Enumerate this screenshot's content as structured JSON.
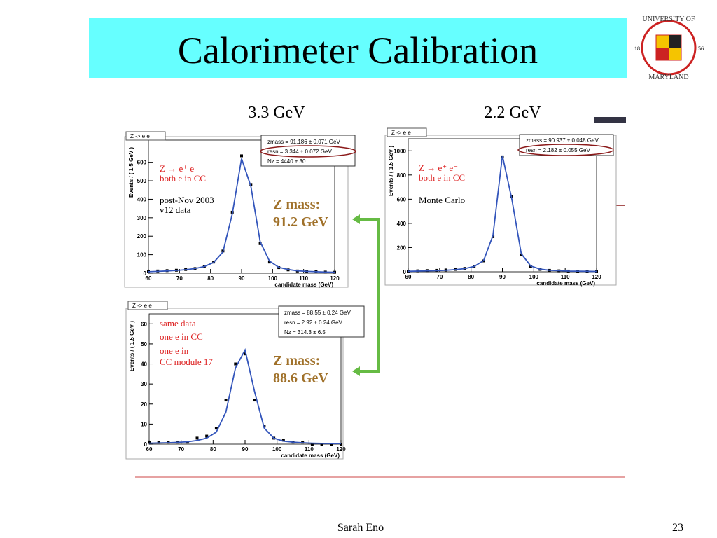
{
  "slide": {
    "title": "Calorimeter Calibration",
    "left_label": "3.3 GeV",
    "right_label": "2.2 GeV",
    "zmass_top": [
      "Z mass:",
      "91.2 GeV"
    ],
    "zmass_bottom": [
      "Z mass:",
      "88.6 GeV"
    ],
    "footer": "Sarah Eno",
    "page": "23",
    "logo": {
      "top": "UNIVERSITY OF",
      "bottom": "MARYLAND",
      "left": "18",
      "right": "56"
    }
  },
  "chart_data": [
    {
      "type": "line",
      "label": "Z -> e e",
      "stats": [
        "zmass =  91.186 ± 0.071 GeV",
        "resn =  3.344 ± 0.072 GeV",
        "Nz =  4440 ± 30"
      ],
      "annotations": [
        "Z → e⁺ e⁻",
        "both e in CC",
        "post-Nov 2003",
        "v12 data"
      ],
      "ylabel": "Events / ( 1.5 GeV )",
      "xlabel": "candidate mass (GeV)",
      "x": [
        60,
        63,
        66,
        69,
        72,
        75,
        78,
        81,
        84,
        87,
        90,
        93,
        96,
        99,
        102,
        105,
        108,
        111,
        114,
        117,
        120
      ],
      "series": [
        {
          "style": "points",
          "color": "#000000",
          "values": [
            10,
            12,
            14,
            16,
            20,
            25,
            35,
            60,
            120,
            330,
            635,
            480,
            160,
            60,
            30,
            18,
            12,
            10,
            8,
            6,
            5
          ]
        },
        {
          "style": "line",
          "color": "#3355bb",
          "values": [
            8,
            10,
            12,
            15,
            19,
            25,
            36,
            58,
            115,
            320,
            620,
            470,
            170,
            65,
            32,
            20,
            13,
            10,
            8,
            6,
            5
          ]
        }
      ],
      "xlim": [
        60,
        120
      ],
      "ylim": [
        0,
        720
      ],
      "xticks": [
        60,
        70,
        80,
        90,
        100,
        110,
        120
      ],
      "yticks": [
        0,
        100,
        200,
        300,
        400,
        500,
        600
      ]
    },
    {
      "type": "line",
      "label": "Z -> e e",
      "stats": [
        "zmass =  90.937 ± 0.048 GeV",
        "resn =  2.182 ± 0.055 GeV"
      ],
      "annotations": [
        "Z → e⁺ e⁻",
        "both e in CC",
        "Monte Carlo"
      ],
      "ylabel": "Events / ( 1.5 GeV )",
      "xlabel": "candidate mass (GeV)",
      "x": [
        60,
        63,
        66,
        69,
        72,
        75,
        78,
        81,
        84,
        87,
        90,
        93,
        96,
        99,
        102,
        105,
        108,
        111,
        114,
        117,
        120
      ],
      "series": [
        {
          "style": "points",
          "color": "#000000",
          "values": [
            5,
            8,
            10,
            12,
            15,
            20,
            28,
            45,
            90,
            290,
            950,
            620,
            140,
            45,
            20,
            12,
            8,
            6,
            5,
            4,
            3
          ]
        },
        {
          "style": "line",
          "color": "#3355bb",
          "values": [
            4,
            6,
            8,
            10,
            13,
            18,
            26,
            44,
            92,
            300,
            960,
            600,
            150,
            48,
            22,
            13,
            9,
            6,
            5,
            4,
            3
          ]
        }
      ],
      "xlim": [
        60,
        120
      ],
      "ylim": [
        0,
        1100
      ],
      "xticks": [
        60,
        70,
        80,
        90,
        100,
        110,
        120
      ],
      "yticks": [
        0,
        200,
        400,
        600,
        800,
        1000
      ]
    },
    {
      "type": "line",
      "label": "Z -> e e",
      "stats": [
        "zmass =  88.55 ± 0.24 GeV",
        "resn =  2.92 ± 0.24 GeV",
        "Nz =  314.3 ± 6.5"
      ],
      "annotations": [
        "same data",
        "one e in CC",
        "one e in",
        "CC module 17"
      ],
      "ylabel": "Events / ( 1.5 GeV )",
      "xlabel": "candidate mass (GeV)",
      "x": [
        60,
        63,
        66,
        69,
        72,
        75,
        78,
        81,
        84,
        87,
        90,
        93,
        96,
        99,
        102,
        105,
        108,
        111,
        114,
        117,
        120
      ],
      "series": [
        {
          "style": "points",
          "color": "#000000",
          "values": [
            1,
            1,
            1,
            1,
            1,
            3,
            4,
            8,
            22,
            40,
            45,
            22,
            9,
            3,
            2,
            1,
            1,
            0,
            0,
            0,
            0
          ]
        },
        {
          "style": "line",
          "color": "#3355bb",
          "values": [
            0.5,
            0.6,
            0.7,
            0.9,
            1.2,
            1.8,
            3,
            6,
            16,
            38,
            47,
            26,
            8,
            3,
            1.5,
            1,
            0.7,
            0.5,
            0.4,
            0.3,
            0.3
          ]
        }
      ],
      "xlim": [
        60,
        120
      ],
      "ylim": [
        0,
        65
      ],
      "xticks": [
        60,
        70,
        80,
        90,
        100,
        110,
        120
      ],
      "yticks": [
        0,
        10,
        20,
        30,
        40,
        50,
        60
      ]
    }
  ]
}
